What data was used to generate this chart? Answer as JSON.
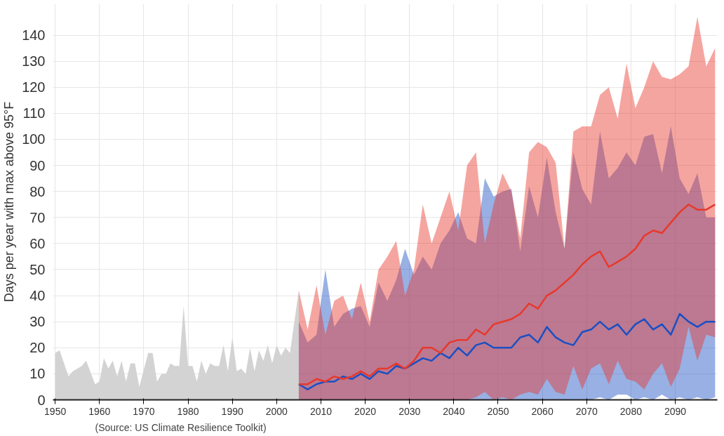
{
  "chart_data": {
    "type": "line",
    "ylabel": "Days per year with max above 95°F",
    "annotations": [
      "(Source: US Climate Resilience Toolkit)"
    ],
    "xlim": [
      1949.5,
      2099.5
    ],
    "xticks": [
      1950,
      1960,
      1970,
      1980,
      1990,
      2000,
      2010,
      2020,
      2030,
      2040,
      2050,
      2060,
      2070,
      2080,
      2090
    ],
    "ylim": [
      0,
      152
    ],
    "yticks": [
      0,
      10,
      20,
      30,
      40,
      50,
      60,
      70,
      80,
      90,
      100,
      110,
      120,
      130,
      140
    ],
    "grid": true,
    "series": [
      {
        "type": "area",
        "color": "#d3d3d3",
        "x": [
          1950,
          1951,
          1953,
          1954,
          1956,
          1957,
          1959,
          1960,
          1961,
          1962,
          1963,
          1964,
          1965,
          1966,
          1967,
          1968,
          1969,
          1971,
          1972,
          1973,
          1974,
          1975,
          1976,
          1977,
          1978,
          1979,
          1980,
          1981,
          1982,
          1983,
          1984,
          1985,
          1986,
          1987,
          1988,
          1989,
          1990,
          1991,
          1992,
          1993,
          1994,
          1995,
          1996,
          1997,
          1998,
          1999,
          2000,
          2001,
          2002,
          2003,
          2004,
          2005
        ],
        "values": [
          18,
          19,
          9,
          11,
          13,
          15,
          6,
          7,
          16,
          12,
          15,
          9,
          15,
          7,
          14,
          14,
          5,
          18,
          18,
          7,
          10,
          10,
          14,
          13,
          13,
          36,
          13,
          13,
          7,
          15,
          10,
          14,
          13,
          13,
          21,
          11,
          24,
          11,
          12,
          10,
          20,
          11,
          19,
          15,
          21,
          14,
          21,
          17,
          20,
          18,
          30,
          42
        ]
      },
      {
        "color": "#1a4fc4",
        "x": [
          2005,
          2007,
          2009,
          2011,
          2013,
          2015,
          2017,
          2019,
          2021,
          2023,
          2025,
          2027,
          2029,
          2031,
          2033,
          2035,
          2037,
          2039,
          2041,
          2043,
          2045,
          2047,
          2049,
          2051,
          2053,
          2055,
          2057,
          2059,
          2061,
          2063,
          2065,
          2067,
          2069,
          2071,
          2073,
          2075,
          2077,
          2079,
          2081,
          2083,
          2085,
          2087,
          2089,
          2091,
          2093,
          2095,
          2097,
          2099
        ],
        "values": [
          6,
          4,
          6,
          7,
          7,
          9,
          8,
          10,
          8,
          11,
          10,
          13,
          12,
          14,
          16,
          15,
          18,
          16,
          20,
          17,
          21,
          22,
          20,
          20,
          20,
          24,
          25,
          22,
          28,
          24,
          22,
          21,
          26,
          27,
          30,
          27,
          29,
          25,
          29,
          31,
          27,
          29,
          25,
          33,
          30,
          28,
          30,
          30
        ],
        "lower": [
          0,
          0,
          0,
          0,
          0,
          0,
          0,
          0,
          0,
          0,
          0,
          0,
          0,
          0,
          0,
          0,
          0,
          0,
          0,
          0,
          0,
          0,
          0,
          0,
          0,
          0,
          0,
          0,
          0,
          0,
          0,
          0,
          0,
          0,
          1,
          0,
          2,
          2,
          0,
          1,
          0,
          2,
          0,
          1,
          0,
          1,
          0,
          1
        ],
        "upper": [
          30,
          22,
          25,
          50,
          28,
          33,
          35,
          36,
          28,
          45,
          38,
          46,
          58,
          48,
          55,
          50,
          60,
          65,
          72,
          62,
          60,
          85,
          78,
          80,
          81,
          57,
          82,
          70,
          93,
          72,
          58,
          95,
          81,
          75,
          103,
          85,
          89,
          95,
          90,
          101,
          102,
          87,
          105,
          85,
          79,
          87,
          70,
          70
        ]
      },
      {
        "color": "#e8382c",
        "x": [
          2005,
          2007,
          2009,
          2011,
          2013,
          2015,
          2017,
          2019,
          2021,
          2023,
          2025,
          2027,
          2029,
          2031,
          2033,
          2035,
          2037,
          2039,
          2041,
          2043,
          2045,
          2047,
          2049,
          2051,
          2053,
          2055,
          2057,
          2059,
          2061,
          2063,
          2065,
          2067,
          2069,
          2071,
          2073,
          2075,
          2077,
          2079,
          2081,
          2083,
          2085,
          2087,
          2089,
          2091,
          2093,
          2095,
          2097,
          2099
        ],
        "values": [
          6,
          6,
          8,
          7,
          9,
          8,
          9,
          11,
          9,
          12,
          12,
          14,
          12,
          15,
          20,
          20,
          18,
          22,
          23,
          23,
          27,
          25,
          29,
          30,
          31,
          33,
          37,
          35,
          40,
          42,
          45,
          48,
          52,
          55,
          57,
          51,
          53,
          55,
          58,
          63,
          65,
          64,
          68,
          72,
          75,
          73,
          73,
          75
        ],
        "lower": [
          0,
          0,
          0,
          0,
          0,
          0,
          0,
          0,
          0,
          0,
          0,
          0,
          0,
          0,
          0,
          0,
          0,
          0,
          0,
          0,
          1,
          3,
          0,
          1,
          0,
          2,
          3,
          2,
          8,
          3,
          2,
          13,
          4,
          12,
          14,
          6,
          15,
          8,
          7,
          4,
          10,
          14,
          5,
          12,
          28,
          15,
          25,
          24
        ],
        "upper": [
          42,
          27,
          44,
          25,
          38,
          40,
          31,
          45,
          30,
          50,
          55,
          61,
          40,
          50,
          75,
          60,
          70,
          80,
          65,
          90,
          95,
          60,
          75,
          87,
          80,
          62,
          95,
          99,
          97,
          91,
          58,
          103,
          105,
          105,
          117,
          120,
          108,
          129,
          112,
          120,
          130,
          124,
          123,
          125,
          128,
          147,
          128,
          135
        ]
      }
    ]
  }
}
